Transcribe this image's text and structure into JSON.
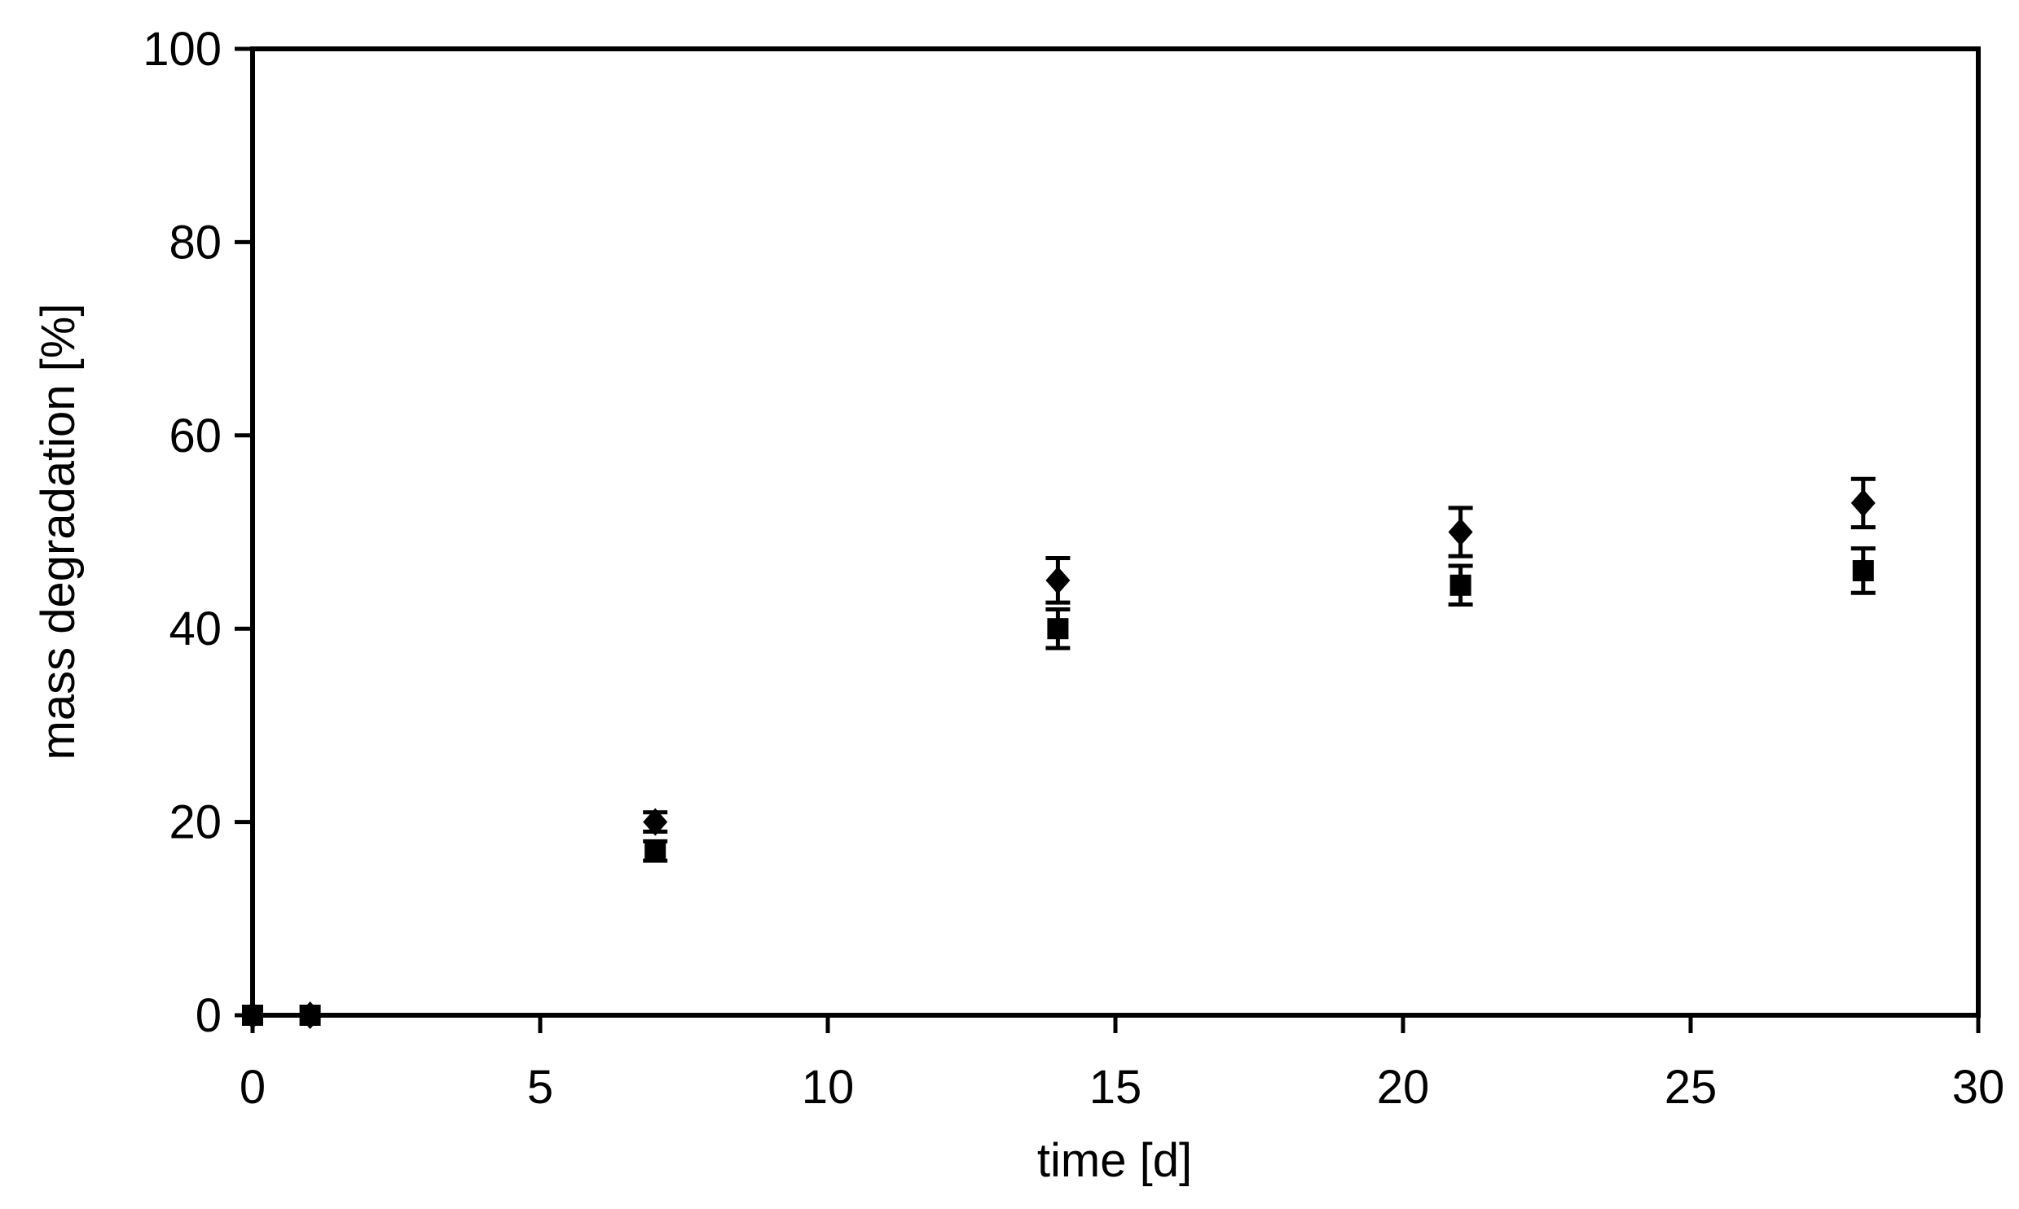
{
  "chart_data": {
    "type": "scatter",
    "title": "",
    "xlabel": "time [d]",
    "ylabel": "mass degradation [%]",
    "xlim": [
      0,
      30
    ],
    "ylim": [
      0,
      100
    ],
    "x_ticks": [
      0,
      5,
      10,
      15,
      20,
      25,
      30
    ],
    "y_ticks": [
      0,
      20,
      40,
      60,
      80,
      100
    ],
    "grid": false,
    "legend_position": "none",
    "frame": "full-box",
    "tick_direction": "out",
    "colors": {
      "axis": "#000000",
      "marker": "#000000",
      "background": "#ffffff"
    },
    "series": [
      {
        "name": "diamond-series",
        "marker": "diamond",
        "color": "#000000",
        "points": [
          {
            "x": 0,
            "y": 0,
            "err": 0
          },
          {
            "x": 1,
            "y": 0,
            "err": 0
          },
          {
            "x": 7,
            "y": 20,
            "err": 1
          },
          {
            "x": 14,
            "y": 45,
            "err": 2.3
          },
          {
            "x": 21,
            "y": 50,
            "err": 2.5
          },
          {
            "x": 28,
            "y": 53,
            "err": 2.5
          }
        ]
      },
      {
        "name": "square-series",
        "marker": "square",
        "color": "#000000",
        "points": [
          {
            "x": 0,
            "y": 0,
            "err": 0
          },
          {
            "x": 1,
            "y": 0,
            "err": 0
          },
          {
            "x": 7,
            "y": 17,
            "err": 1
          },
          {
            "x": 14,
            "y": 40,
            "err": 2
          },
          {
            "x": 21,
            "y": 44.5,
            "err": 2
          },
          {
            "x": 28,
            "y": 46,
            "err": 2.3
          }
        ]
      }
    ]
  }
}
